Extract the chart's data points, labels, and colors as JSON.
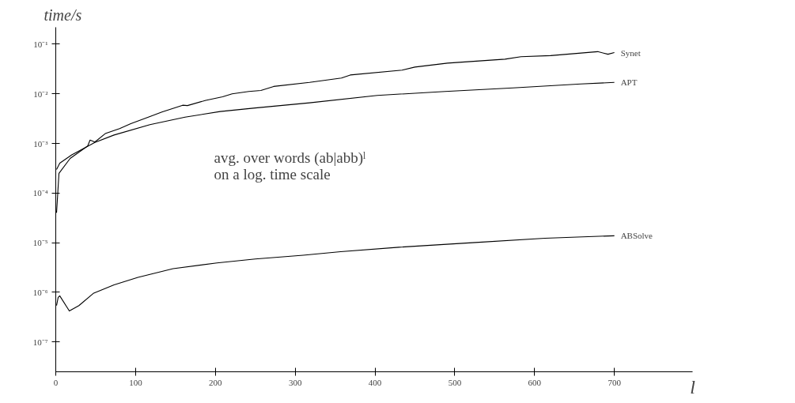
{
  "chart_data": {
    "type": "line",
    "xlabel": "l",
    "ylabel": "time/s",
    "log": "y",
    "grid": false,
    "marker": "none",
    "line_style": "solid",
    "xlim": [
      0,
      798
    ],
    "ylim": [
      2.5e-08,
      0.22
    ],
    "xticks": [
      0,
      100,
      200,
      300,
      400,
      500,
      600,
      700
    ],
    "yticks": [
      {
        "value": 1e-07,
        "label": "10⁻⁷"
      },
      {
        "value": 1e-06,
        "label": "10⁻⁶"
      },
      {
        "value": 1e-05,
        "label": "10⁻⁵"
      },
      {
        "value": 0.0001,
        "label": "10⁻⁴"
      },
      {
        "value": 0.001,
        "label": "10⁻³"
      },
      {
        "value": 0.01,
        "label": "10⁻²"
      },
      {
        "value": 0.1,
        "label": "10⁻¹"
      }
    ],
    "annotations": [
      "avg. over words (ab|abb)ˡ\non a log. time scale"
    ],
    "series": [
      {
        "name": "Synet",
        "color": "#000000",
        "x": [
          1,
          4,
          18,
          40,
          43,
          49,
          62,
          80,
          94,
          116,
          133,
          159,
          165,
          188,
          209,
          221,
          242,
          257,
          273,
          318,
          358,
          369,
          434,
          450,
          491,
          563,
          583,
          620,
          679,
          692,
          700
        ],
        "values": [
          4e-05,
          0.00025,
          0.0005,
          0.00089,
          0.00117,
          0.00107,
          0.00158,
          0.002,
          0.0025,
          0.0034,
          0.0043,
          0.0059,
          0.0058,
          0.0074,
          0.0087,
          0.01,
          0.0112,
          0.0117,
          0.0141,
          0.017,
          0.0209,
          0.024,
          0.03,
          0.0347,
          0.0417,
          0.05,
          0.056,
          0.059,
          0.071,
          0.063,
          0.068
        ]
      },
      {
        "name": "APT",
        "color": "#000000",
        "x": [
          1,
          5,
          20,
          49,
          73,
          118,
          162,
          206,
          250,
          318,
          403,
          488,
          573,
          658,
          700
        ],
        "values": [
          0.0003,
          0.0004,
          0.00059,
          0.00105,
          0.00148,
          0.0024,
          0.0034,
          0.0044,
          0.0052,
          0.0066,
          0.0093,
          0.0112,
          0.0132,
          0.0158,
          0.017
        ]
      },
      {
        "name": "ABSolve",
        "color": "#000000",
        "x": [
          1,
          3,
          5,
          17,
          29,
          47,
          73,
          103,
          147,
          202,
          250,
          310,
          357,
          430,
          522,
          613,
          700
        ],
        "values": [
          5.4e-07,
          7.9e-07,
          8.5e-07,
          4.2e-07,
          5.4e-07,
          9.5e-07,
          1.41e-06,
          2e-06,
          3e-06,
          3.9e-06,
          4.7e-06,
          5.6e-06,
          6.6e-06,
          8.1e-06,
          1e-05,
          1.23e-05,
          1.38e-05
        ]
      }
    ]
  }
}
